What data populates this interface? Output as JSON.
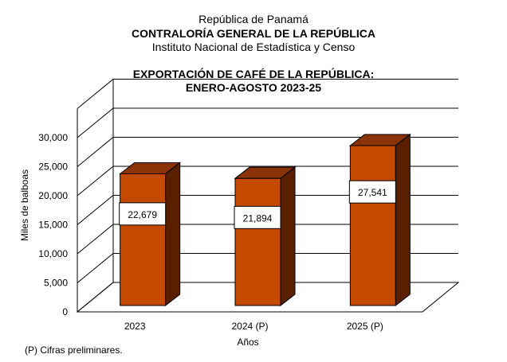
{
  "header": {
    "line1": "República de Panamá",
    "line2": "CONTRALORÍA GENERAL DE LA REPÚBLICA",
    "line3": "Instituto Nacional de Estadística y Censo"
  },
  "footnote": "(P) Cifras  preliminares.",
  "colors": {
    "bar_front": "#c44a00",
    "bar_top": "#8a3208",
    "bar_side": "#5a1f00"
  },
  "chart_data": {
    "type": "bar",
    "title": "EXPORTACIÓN DE CAFÉ DE LA REPÚBLICA:",
    "subtitle": "ENERO-AGOSTO 2023-25",
    "categories": [
      "2023",
      "2024 (P)",
      "2025 (P)"
    ],
    "values": [
      22679,
      21894,
      27541
    ],
    "value_labels": [
      "22,679",
      "21,894",
      "27,541"
    ],
    "ylabel": "Miles de balboas",
    "xlabel": "Años",
    "ylim": [
      0,
      35000
    ],
    "yticks": [
      0,
      5000,
      10000,
      15000,
      20000,
      25000,
      30000
    ],
    "ytick_labels": [
      "0",
      "5,000",
      "10,000",
      "15,000",
      "20,000",
      "25,000",
      "30,000"
    ],
    "grid": true,
    "legend": "none",
    "style": "3d"
  }
}
